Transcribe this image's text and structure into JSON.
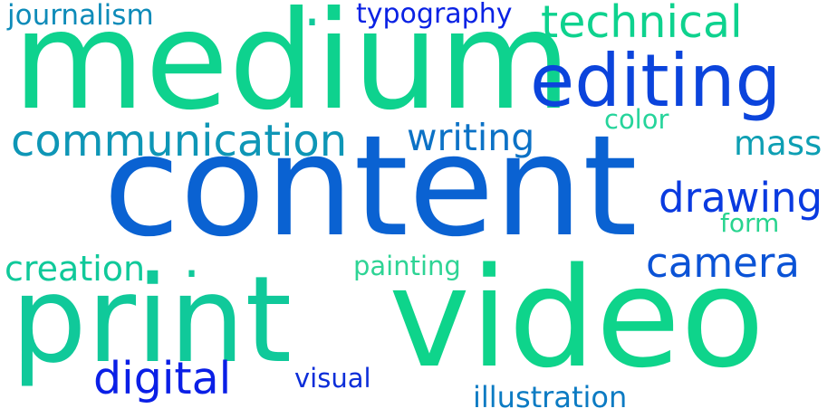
{
  "words": [
    {
      "key": "content",
      "text": "content",
      "color": "#0a62d2"
    },
    {
      "key": "medium",
      "text": "medium",
      "color": "#0ed28e"
    },
    {
      "key": "video",
      "text": "video",
      "color": "#0ed48b"
    },
    {
      "key": "print",
      "text": "print",
      "color": "#10c99a"
    },
    {
      "key": "editing",
      "text": "editing",
      "color": "#0b44dc"
    },
    {
      "key": "communication",
      "text": "communication",
      "color": "#0e96b6"
    },
    {
      "key": "technical",
      "text": "technical",
      "color": "#0ed28e"
    },
    {
      "key": "digital",
      "text": "digital",
      "color": "#0a1fe6"
    },
    {
      "key": "drawing",
      "text": "drawing",
      "color": "#0a3ae0"
    },
    {
      "key": "camera",
      "text": "camera",
      "color": "#0b53d6"
    },
    {
      "key": "writing",
      "text": "writing",
      "color": "#0c72c6"
    },
    {
      "key": "creation",
      "text": "creation",
      "color": "#10c99a"
    },
    {
      "key": "mass",
      "text": "mass",
      "color": "#0e9fb3"
    },
    {
      "key": "typography",
      "text": "typography",
      "color": "#0a22e4"
    },
    {
      "key": "journalism",
      "text": "journalism",
      "color": "#0e8bb9"
    },
    {
      "key": "illustration",
      "text": "illustration",
      "color": "#0c7bc3"
    },
    {
      "key": "painting",
      "text": "painting",
      "color": "#2ed495"
    },
    {
      "key": "visual",
      "text": "visual",
      "color": "#0c2ed9"
    },
    {
      "key": "color",
      "text": "color",
      "color": "#26d49b"
    },
    {
      "key": "form",
      "text": "form",
      "color": "#28d48f"
    },
    {
      "key": "dot1",
      "text": ".",
      "color": "#10c99a"
    },
    {
      "key": "dot2",
      "text": ".",
      "color": "#10c99a"
    }
  ]
}
